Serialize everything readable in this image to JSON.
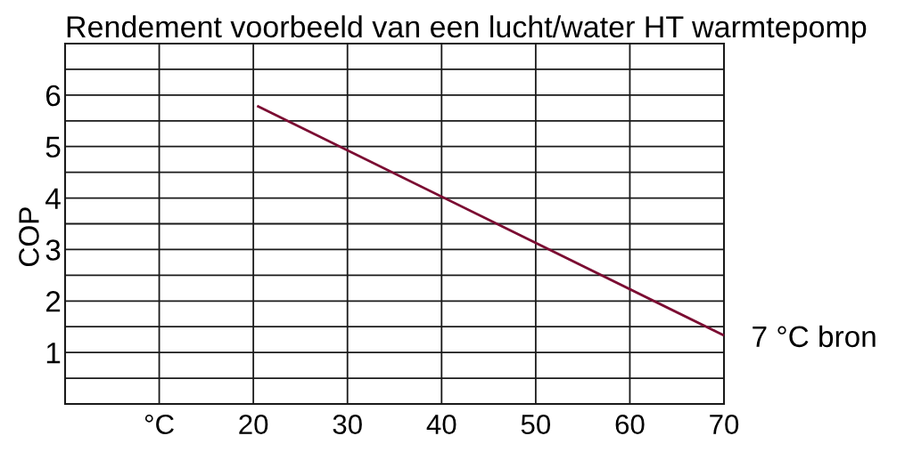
{
  "chart_data": {
    "type": "line",
    "title": "Rendement voorbeeld van een lucht/water HT warmtepomp",
    "ylabel": "COP",
    "x": [
      20.4,
      70
    ],
    "series": [
      {
        "name": "7 °C bron",
        "color": "#7b0c32",
        "values": [
          5.79,
          1.33
        ]
      }
    ],
    "xlim": [
      0,
      70
    ],
    "xticks": [
      {
        "value": 10,
        "label": "°C"
      },
      20,
      30,
      40,
      50,
      60,
      70
    ],
    "ylim": [
      0,
      7
    ],
    "yticks": [
      {
        "value": 0.5,
        "label": null
      },
      1,
      {
        "value": 1.5,
        "label": null
      },
      2,
      {
        "value": 2.5,
        "label": null
      },
      3,
      {
        "value": 3.5,
        "label": null
      },
      4,
      {
        "value": 4.5,
        "label": null
      },
      5,
      {
        "value": 5.5,
        "label": null
      },
      6,
      {
        "value": 6.5,
        "label": null
      }
    ],
    "grid": true,
    "legend": false,
    "marker": "none",
    "line_style": "solid"
  }
}
